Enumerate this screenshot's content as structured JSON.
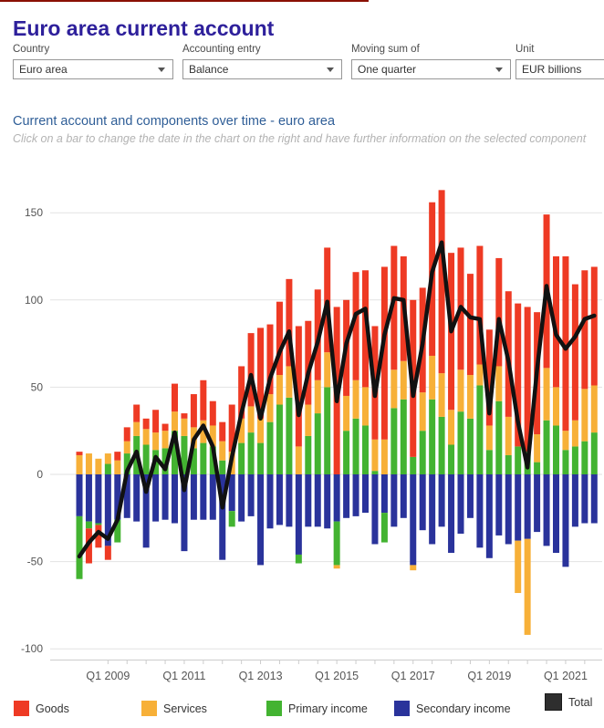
{
  "page": {
    "title": "Euro area current account",
    "top_strip_color": "#8a1004"
  },
  "filters": [
    {
      "label": "Country",
      "value": "Euro area"
    },
    {
      "label": "Accounting entry",
      "value": "Balance"
    },
    {
      "label": "Moving sum of",
      "value": "One quarter"
    },
    {
      "label": "Unit",
      "value": "EUR billions"
    }
  ],
  "section": {
    "title": "Current account and components over time - euro area",
    "hint": "Click on a bar to change the date in the chart on the right and have further information on the selected component"
  },
  "legend": [
    {
      "label": "Goods",
      "color": "#ee3a24"
    },
    {
      "label": "Services",
      "color": "#f7b038"
    },
    {
      "label": "Primary income",
      "color": "#43b331"
    },
    {
      "label": "Secondary income",
      "color": "#2a339b"
    },
    {
      "label": "Total",
      "color": "#2e2e2e"
    }
  ],
  "chart_data": {
    "type": "bar",
    "subtype": "stacked-bars-with-total-line",
    "unit": "EUR billions",
    "title": "Current account and components over time - euro area",
    "xlabel": "",
    "ylabel": "",
    "ylim": [
      -110,
      170
    ],
    "y_ticks": [
      150,
      100,
      50,
      0,
      -50,
      -100
    ],
    "grid": true,
    "legend_position": "bottom",
    "quarters": [
      "2008Q2",
      "2008Q3",
      "2008Q4",
      "2009Q1",
      "2009Q2",
      "2009Q3",
      "2009Q4",
      "2010Q1",
      "2010Q2",
      "2010Q3",
      "2010Q4",
      "2011Q1",
      "2011Q2",
      "2011Q3",
      "2011Q4",
      "2012Q1",
      "2012Q2",
      "2012Q3",
      "2012Q4",
      "2013Q1",
      "2013Q2",
      "2013Q3",
      "2013Q4",
      "2014Q1",
      "2014Q2",
      "2014Q3",
      "2014Q4",
      "2015Q1",
      "2015Q2",
      "2015Q3",
      "2015Q4",
      "2016Q1",
      "2016Q2",
      "2016Q3",
      "2016Q4",
      "2017Q1",
      "2017Q2",
      "2017Q3",
      "2017Q4",
      "2018Q1",
      "2018Q2",
      "2018Q3",
      "2018Q4",
      "2019Q1",
      "2019Q2",
      "2019Q3",
      "2019Q4",
      "2020Q1",
      "2020Q2",
      "2020Q3",
      "2020Q4",
      "2021Q1",
      "2021Q2",
      "2021Q3",
      "2021Q4"
    ],
    "x_tick_labels": [
      "Q1 2009",
      "Q1 2011",
      "Q1 2013",
      "Q1 2015",
      "Q1 2017",
      "Q1 2019",
      "Q1 2021"
    ],
    "x_tick_start_index": 3,
    "x_tick_step": 8,
    "series": [
      {
        "name": "Goods",
        "color": "#ee3a24",
        "values": [
          2,
          -20,
          -13,
          -8,
          5,
          8,
          10,
          6,
          13,
          4,
          16,
          3,
          19,
          23,
          14,
          11,
          27,
          30,
          42,
          52,
          40,
          42,
          50,
          69,
          48,
          52,
          60,
          96,
          55,
          62,
          67,
          65,
          99,
          71,
          60,
          90,
          60,
          88,
          105,
          90,
          70,
          58,
          68,
          55,
          62,
          72,
          82,
          83,
          70,
          88,
          75,
          100,
          78,
          68,
          68
        ]
      },
      {
        "name": "Services",
        "color": "#f7b038",
        "values": [
          11,
          12,
          9,
          6,
          8,
          7,
          8,
          9,
          10,
          10,
          11,
          10,
          12,
          13,
          12,
          11,
          13,
          14,
          15,
          14,
          16,
          17,
          18,
          16,
          18,
          19,
          20,
          -2,
          20,
          22,
          22,
          18,
          20,
          22,
          22,
          -3,
          22,
          25,
          25,
          20,
          24,
          25,
          12,
          14,
          20,
          22,
          -30,
          -55,
          16,
          30,
          22,
          11,
          15,
          30,
          27
        ]
      },
      {
        "name": "Primary income",
        "color": "#43b331",
        "values": [
          -36,
          -4,
          -1,
          6,
          -13,
          12,
          22,
          17,
          14,
          15,
          25,
          22,
          15,
          18,
          16,
          8,
          -9,
          18,
          24,
          18,
          30,
          40,
          44,
          -5,
          22,
          35,
          50,
          -25,
          25,
          32,
          28,
          2,
          -17,
          38,
          43,
          10,
          25,
          43,
          33,
          17,
          36,
          32,
          51,
          14,
          42,
          11,
          16,
          13,
          7,
          31,
          28,
          14,
          16,
          19,
          24
        ]
      },
      {
        "name": "Secondary income",
        "color": "#2a339b",
        "values": [
          -24,
          -27,
          -28,
          -41,
          -26,
          -25,
          -27,
          -42,
          -27,
          -26,
          -28,
          -44,
          -26,
          -26,
          -26,
          -49,
          -21,
          -27,
          -24,
          -52,
          -31,
          -29,
          -30,
          -46,
          -30,
          -30,
          -31,
          -27,
          -25,
          -24,
          -22,
          -40,
          -22,
          -30,
          -25,
          -52,
          -32,
          -40,
          -30,
          -45,
          -34,
          -25,
          -42,
          -48,
          -35,
          -40,
          -38,
          -37,
          -33,
          -41,
          -45,
          -53,
          -30,
          -28,
          -28
        ]
      }
    ],
    "total_line": {
      "name": "Total",
      "color": "#111111",
      "note": "sum of the four components per quarter"
    },
    "positive_stack_order": [
      "Primary income",
      "Services",
      "Goods"
    ],
    "negative_stack_order": [
      "Secondary income",
      "Primary income",
      "Services",
      "Goods"
    ]
  }
}
